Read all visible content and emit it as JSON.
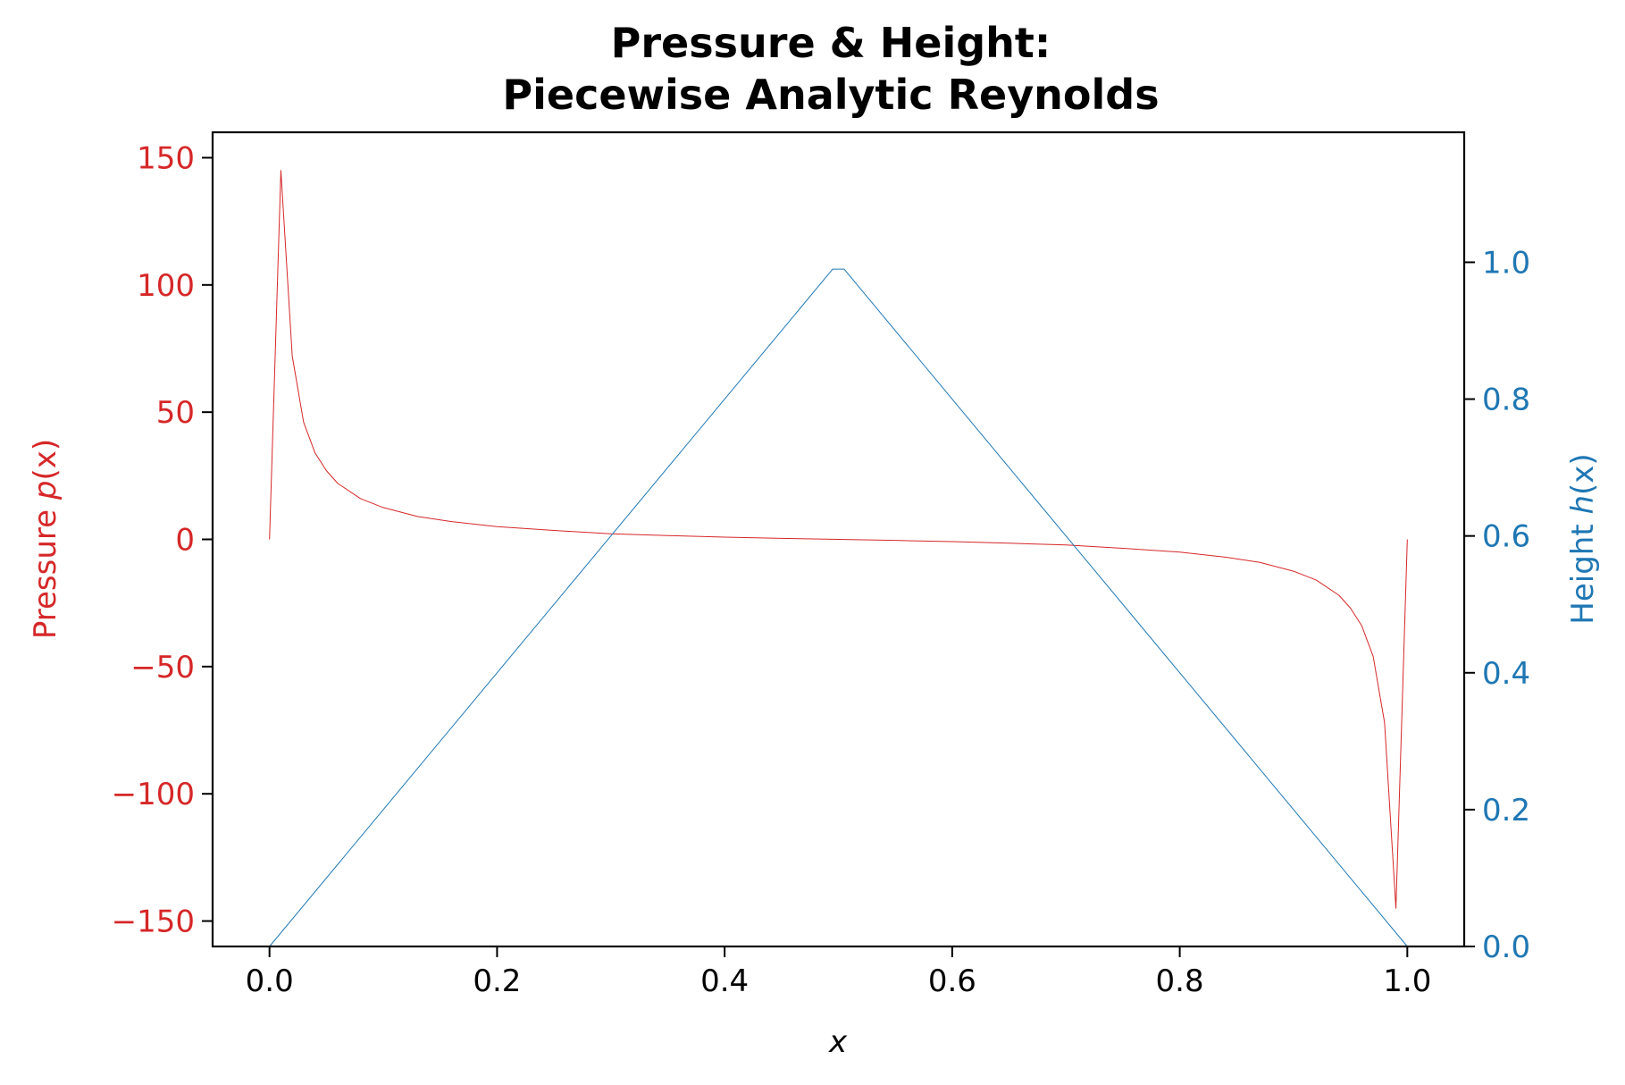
{
  "chart_data": {
    "type": "line",
    "title": [
      "Pressure & Height:",
      "Piecewise Analytic Reynolds"
    ],
    "xlabel": "x",
    "ylabel_left": {
      "prefix": "Pressure ",
      "var": "p",
      "suffix": "(x)"
    },
    "ylabel_right": {
      "prefix": "Height ",
      "var": "h",
      "suffix": "(x)"
    },
    "xlim": [
      -0.05,
      1.05
    ],
    "ylim_left": [
      -160,
      160
    ],
    "ylim_right": [
      0,
      1.19
    ],
    "xticks": [
      0.0,
      0.2,
      0.4,
      0.6,
      0.8,
      1.0
    ],
    "xtick_labels": [
      "0.0",
      "0.2",
      "0.4",
      "0.6",
      "0.8",
      "1.0"
    ],
    "yticks_left": [
      150,
      100,
      50,
      0,
      -50,
      -100,
      -150
    ],
    "ytick_labels_left": [
      "150",
      "100",
      "50",
      "0",
      "−50",
      "−100",
      "−150"
    ],
    "yticks_right": [
      0.0,
      0.2,
      0.4,
      0.6,
      0.8,
      1.0
    ],
    "ytick_labels_right": [
      "0.0",
      "0.2",
      "0.4",
      "0.6",
      "0.8",
      "1.0"
    ],
    "grid": false,
    "colors": {
      "pressure": "#d62728",
      "height": "#1f77b4",
      "axes": "#000000"
    },
    "series": [
      {
        "axis": "left",
        "color": "#d62728",
        "x": [
          0.0,
          0.01,
          0.02,
          0.03,
          0.04,
          0.05,
          0.06,
          0.08,
          0.1,
          0.13,
          0.16,
          0.2,
          0.25,
          0.3,
          0.35,
          0.4,
          0.45,
          0.5,
          0.55,
          0.6,
          0.65,
          0.7,
          0.75,
          0.8,
          0.84,
          0.87,
          0.9,
          0.92,
          0.94,
          0.95,
          0.96,
          0.97,
          0.98,
          0.99,
          1.0
        ],
        "values": [
          0,
          145,
          72,
          46,
          34,
          27,
          22,
          16,
          12.5,
          9,
          7,
          5,
          3.5,
          2.2,
          1.5,
          0.9,
          0.4,
          0,
          -0.4,
          -0.9,
          -1.5,
          -2.2,
          -3.5,
          -5,
          -7,
          -9,
          -12.5,
          -16,
          -22,
          -27,
          -34,
          -46,
          -72,
          -145,
          0
        ]
      },
      {
        "axis": "right",
        "color": "#1f77b4",
        "x": [
          0.0,
          0.495,
          0.505,
          1.0
        ],
        "values": [
          0.0,
          0.99,
          0.99,
          0.0
        ]
      }
    ]
  }
}
